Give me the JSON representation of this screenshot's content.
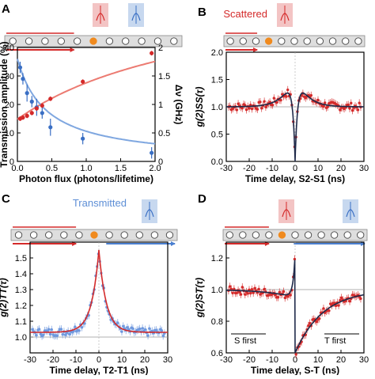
{
  "colors": {
    "blue": "#3a6fc4",
    "blue_light": "#7fa7e0",
    "red": "#d42a2a",
    "red_light": "#ec7b72",
    "orange": "#f08a1e",
    "panel_bg": "#dedede",
    "box_red": "#f3c4c4",
    "box_blue": "#c7d8ef",
    "fit_dark": "#1f2a4a"
  },
  "chart_data": [
    {
      "panel": "A",
      "type": "scatter",
      "xlabel": "Photon flux (photons/lifetime)",
      "ylabel_left": "Transmission amplitude (%)",
      "ylabel_right": "Δν (GHz)",
      "xlim": [
        0,
        2
      ],
      "ylim_left": [
        0,
        40
      ],
      "ylim_right": [
        0,
        2
      ],
      "xticks": [
        "0.0",
        "0.5",
        "1.0",
        "1.5",
        "2.0"
      ],
      "yticks_left": [
        "0",
        "10",
        "20",
        "30",
        "40"
      ],
      "yticks_right": [
        "0",
        "0.5",
        "1",
        "1.5",
        "2"
      ],
      "series": [
        {
          "axis": "left",
          "color": "blue",
          "x": [
            0.04,
            0.08,
            0.14,
            0.21,
            0.28,
            0.36,
            0.48,
            0.95,
            1.95
          ],
          "y": [
            33,
            29,
            24,
            21,
            19,
            17,
            12,
            8,
            3
          ],
          "err": [
            2,
            2,
            3,
            2,
            3,
            2,
            3,
            2,
            2
          ]
        },
        {
          "axis": "right",
          "color": "red",
          "x": [
            0.04,
            0.08,
            0.14,
            0.21,
            0.28,
            0.36,
            0.48,
            0.95,
            1.95
          ],
          "y": [
            0.75,
            0.77,
            0.8,
            0.85,
            0.93,
            0.98,
            1.1,
            1.4,
            1.9
          ],
          "err": [
            0.04,
            0.04,
            0.04,
            0.04,
            0.04,
            0.04,
            0.04,
            0.04,
            0.04
          ]
        }
      ]
    },
    {
      "panel": "B",
      "type": "line",
      "title": "Scattered",
      "xlabel": "Time delay, S2-S1 (ns)",
      "ylabel": "g(2)SS(τ)",
      "xlim": [
        -30,
        30
      ],
      "ylim": [
        0,
        2
      ],
      "xticks": [
        "-30",
        "-20",
        "-10",
        "0",
        "10",
        "20",
        "30"
      ],
      "yticks": [
        "0.0",
        "0.5",
        "1.0",
        "1.5",
        "2.0"
      ],
      "model": "bunch_antibunch",
      "params": {
        "base": 1.0,
        "a": 0.7,
        "w": 4.5,
        "d": 1.0,
        "wd": 1.1
      }
    },
    {
      "panel": "C",
      "type": "line",
      "title": "Transmitted",
      "xlabel": "Time delay, T2-T1 (ns)",
      "ylabel": "g(2)TT(τ)",
      "xlim": [
        -30,
        30
      ],
      "ylim": [
        0.9,
        1.6
      ],
      "xticks": [
        "-30",
        "-20",
        "-10",
        "0",
        "10",
        "20",
        "30"
      ],
      "yticks": [
        "1.0",
        "1.1",
        "1.2",
        "1.3",
        "1.4",
        "1.5"
      ],
      "model": "peak",
      "params": {
        "base": 1.03,
        "a": 0.52,
        "w": 3.2
      }
    },
    {
      "panel": "D",
      "type": "line",
      "xlabel": "Time delay, S-T (ns)",
      "ylabel": "g(2)ST(τ)",
      "xlim": [
        -30,
        30
      ],
      "ylim": [
        0.6,
        1.3
      ],
      "xticks": [
        "-30",
        "-20",
        "-10",
        "0",
        "10",
        "20",
        "30"
      ],
      "yticks": [
        "0.6",
        "0.8",
        "1.0",
        "1.2"
      ],
      "annotations": [
        "S first",
        "T first"
      ],
      "model": "asym",
      "params": {
        "base": 1.0
      }
    }
  ]
}
